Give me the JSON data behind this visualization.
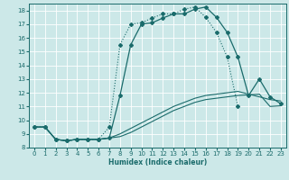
{
  "xlabel": "Humidex (Indice chaleur)",
  "xlim": [
    -0.5,
    23.5
  ],
  "ylim": [
    8,
    18.5
  ],
  "xticks": [
    0,
    1,
    2,
    3,
    4,
    5,
    6,
    7,
    8,
    9,
    10,
    11,
    12,
    13,
    14,
    15,
    16,
    17,
    18,
    19,
    20,
    21,
    22,
    23
  ],
  "yticks": [
    8,
    9,
    10,
    11,
    12,
    13,
    14,
    15,
    16,
    17,
    18
  ],
  "bg_color": "#cce8e8",
  "grid_color": "#ffffff",
  "line_color": "#1a6b6b",
  "curve1_x": [
    0,
    1,
    2,
    3,
    4,
    5,
    6,
    7,
    8,
    9,
    10,
    11,
    12,
    13,
    14,
    15,
    16,
    17,
    18,
    19,
    20,
    21,
    22,
    23
  ],
  "curve1_y": [
    9.5,
    9.5,
    8.6,
    8.5,
    8.6,
    8.6,
    8.6,
    8.7,
    11.8,
    15.5,
    17.0,
    17.1,
    17.45,
    17.75,
    17.75,
    18.1,
    18.25,
    17.5,
    16.4,
    14.6,
    11.8,
    13.0,
    11.7,
    11.2
  ],
  "curve2_x": [
    0,
    1,
    2,
    3,
    4,
    5,
    6,
    7,
    8,
    9,
    10,
    11,
    12,
    13,
    14,
    15,
    16,
    17,
    18,
    19
  ],
  "curve2_y": [
    9.5,
    9.5,
    8.6,
    8.5,
    8.6,
    8.6,
    8.6,
    9.5,
    15.5,
    17.0,
    17.1,
    17.45,
    17.75,
    17.75,
    18.1,
    18.25,
    17.5,
    16.4,
    14.6,
    11.0
  ],
  "curve3_x": [
    0,
    1,
    2,
    3,
    4,
    5,
    6,
    7,
    8,
    9,
    10,
    11,
    12,
    13,
    14,
    15,
    16,
    17,
    18,
    19,
    20,
    21,
    22,
    23
  ],
  "curve3_y": [
    9.5,
    9.5,
    8.6,
    8.5,
    8.6,
    8.6,
    8.6,
    8.7,
    8.8,
    9.1,
    9.5,
    9.9,
    10.3,
    10.7,
    11.0,
    11.3,
    11.5,
    11.6,
    11.7,
    11.8,
    11.85,
    11.9,
    11.0,
    11.05
  ],
  "curve4_x": [
    0,
    1,
    2,
    3,
    4,
    5,
    6,
    7,
    8,
    9,
    10,
    11,
    12,
    13,
    14,
    15,
    16,
    17,
    18,
    19,
    20,
    21,
    22,
    23
  ],
  "curve4_y": [
    9.5,
    9.5,
    8.6,
    8.5,
    8.6,
    8.6,
    8.6,
    8.7,
    9.0,
    9.4,
    9.8,
    10.2,
    10.6,
    11.0,
    11.3,
    11.6,
    11.8,
    11.9,
    12.0,
    12.1,
    11.9,
    11.7,
    11.5,
    11.4
  ]
}
